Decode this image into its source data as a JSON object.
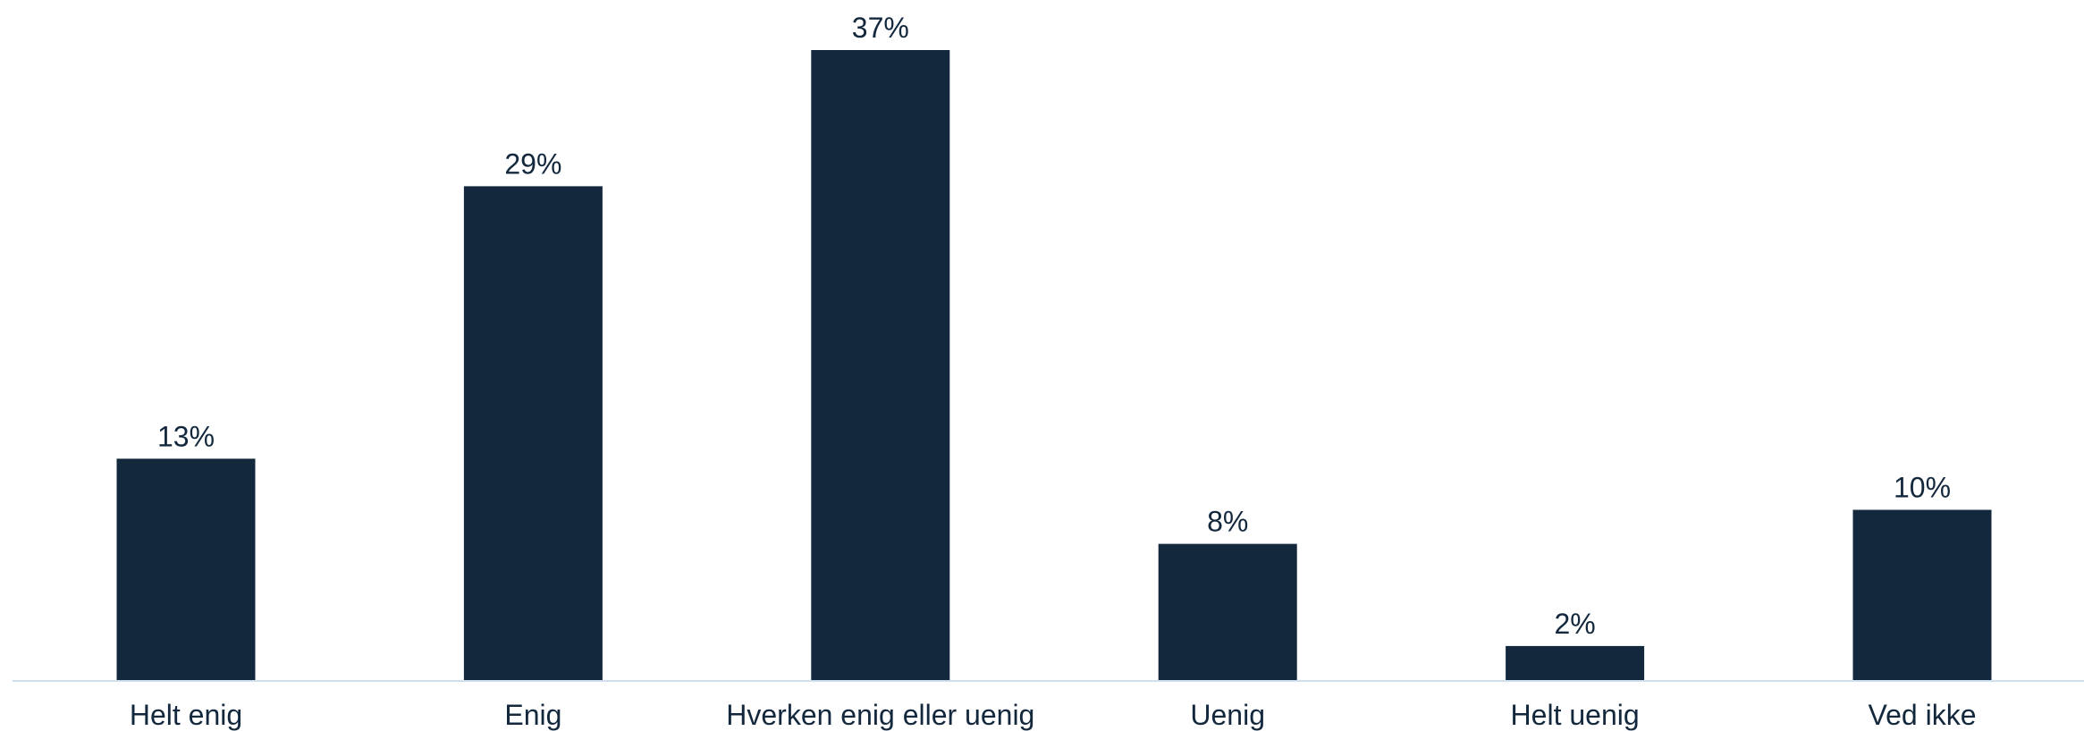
{
  "chart_data": {
    "type": "bar",
    "categories": [
      "Helt enig",
      "Enig",
      "Hverken enig eller uenig",
      "Uenig",
      "Helt uenig",
      "Ved ikke"
    ],
    "values": [
      13,
      29,
      37,
      8,
      2,
      10
    ],
    "data_labels": [
      "13%",
      "29%",
      "37%",
      "8%",
      "2%",
      "10%"
    ],
    "unit": "%",
    "title": "",
    "xlabel": "",
    "ylabel": "",
    "ylim": [
      0,
      37
    ],
    "grid": false,
    "legend": "none",
    "y_axis_visible": false,
    "colors": {
      "bar": "#13283d",
      "text": "#13283d",
      "axis": "#cfe0f0",
      "background": "#ffffff"
    }
  }
}
